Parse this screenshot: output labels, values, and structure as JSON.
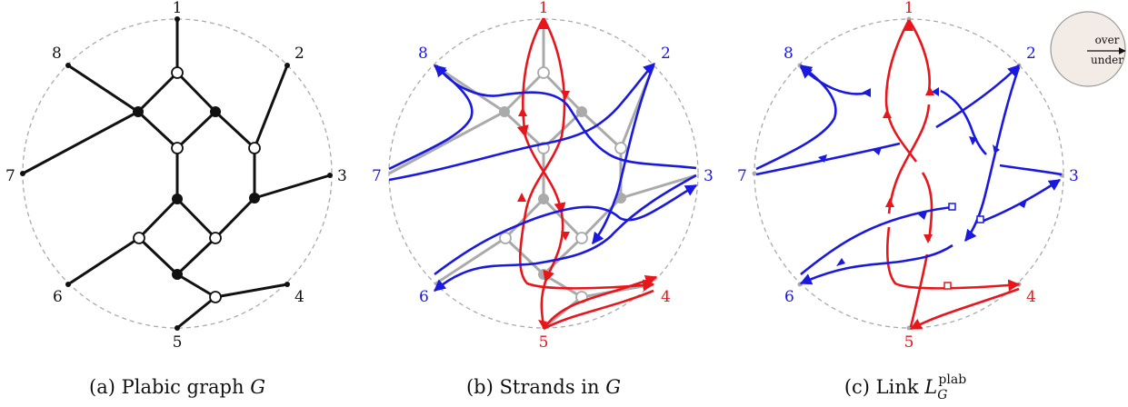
{
  "colors": {
    "black": "#111111",
    "gray": "#aaaaaa",
    "red": "#e8161b",
    "blue": "#1919e0",
    "inset_fill": "#f3ece6"
  },
  "panels": {
    "a": {
      "labels": [
        "1",
        "2",
        "3",
        "4",
        "5",
        "6",
        "7",
        "8"
      ],
      "caption": {
        "prefix": "(a) Plabic graph ",
        "var": "G"
      }
    },
    "b": {
      "labels": [
        "1",
        "2",
        "3",
        "4",
        "5",
        "6",
        "7",
        "8"
      ],
      "caption": {
        "prefix": "(b) Strands in ",
        "var": "G"
      }
    },
    "c": {
      "labels": [
        "1",
        "2",
        "3",
        "4",
        "5",
        "6",
        "7",
        "8"
      ],
      "caption": {
        "prefix": "(c) Link ",
        "var": "L",
        "sub": "G",
        "sup": "plab"
      },
      "inset": {
        "over": "over",
        "under": "under"
      }
    }
  }
}
